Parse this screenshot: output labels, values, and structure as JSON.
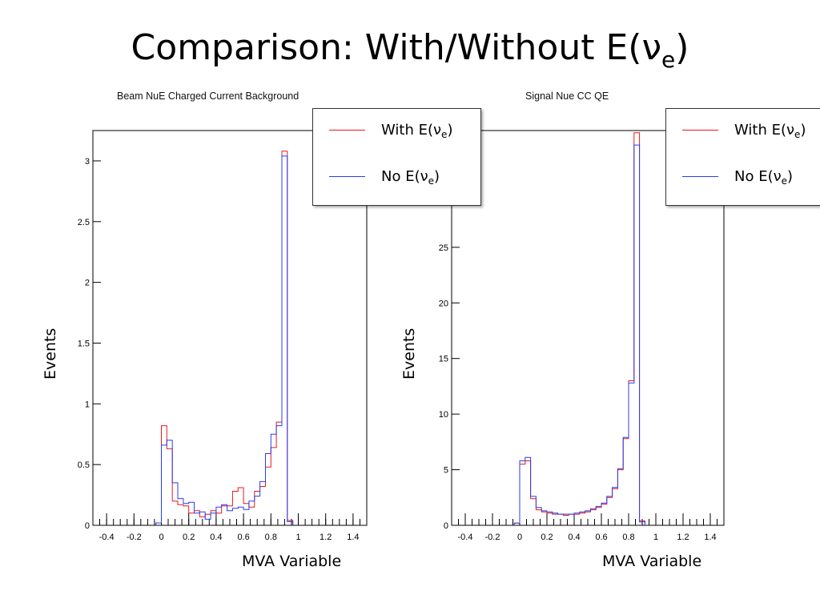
{
  "slide": {
    "title_main": "Comparison: With/Without E(ν",
    "title_sub": "e",
    "title_end": ")"
  },
  "legend": {
    "with_prefix": "With E(ν",
    "no_prefix": "No E(ν",
    "sub": "e",
    "suffix": ")"
  },
  "colors": {
    "with": "#e8191f",
    "without": "#2a3df0",
    "axis": "#000000"
  },
  "chart_data": [
    {
      "type": "histogram",
      "title": "Beam NuE Charged Current Background",
      "xlabel": "MVA Variable",
      "ylabel": "Events",
      "xlim": [
        -0.5,
        1.5
      ],
      "ylim": [
        0,
        3.25
      ],
      "xticks": [
        -0.4,
        -0.2,
        0,
        0.2,
        0.4,
        0.6,
        0.8,
        1,
        1.2,
        1.4
      ],
      "xtick_labels": [
        "-0.4",
        "-0.2",
        "0",
        "0.2",
        "0.4",
        "0.6",
        "0.8",
        "1",
        "1.2",
        "1.4"
      ],
      "yticks": [
        0,
        0.5,
        1,
        1.5,
        2,
        2.5,
        3
      ],
      "ytick_labels": [
        "0",
        "0.5",
        "1",
        "1.5",
        "2",
        "2.5",
        "3"
      ],
      "bin_width": 0.04,
      "bin_start": -0.04,
      "series": [
        {
          "name": "With E(ν_e)",
          "values": [
            0.02,
            0.82,
            0.63,
            0.2,
            0.17,
            0.16,
            0.1,
            0.12,
            0.07,
            0.09,
            0.12,
            0.1,
            0.16,
            0.16,
            0.28,
            0.31,
            0.18,
            0.15,
            0.28,
            0.32,
            0.48,
            0.64,
            0.85,
            3.08,
            0.04
          ]
        },
        {
          "name": "No E(ν_e)",
          "values": [
            0.02,
            0.66,
            0.7,
            0.35,
            0.22,
            0.18,
            0.19,
            0.1,
            0.11,
            0.05,
            0.1,
            0.15,
            0.17,
            0.12,
            0.14,
            0.15,
            0.13,
            0.2,
            0.24,
            0.36,
            0.59,
            0.75,
            0.82,
            3.04,
            0.03
          ]
        }
      ]
    },
    {
      "type": "histogram",
      "title": "Signal Nue CC QE",
      "xlabel": "MVA Variable",
      "ylabel": "Events",
      "xlim": [
        -0.5,
        1.5
      ],
      "ylim": [
        0,
        35.5
      ],
      "xticks": [
        -0.4,
        -0.2,
        0,
        0.2,
        0.4,
        0.6,
        0.8,
        1,
        1.2,
        1.4
      ],
      "xtick_labels": [
        "-0.4",
        "-0.2",
        "0",
        "0.2",
        "0.4",
        "0.6",
        "0.8",
        "1",
        "1.2",
        "1.4"
      ],
      "yticks": [
        0,
        5,
        10,
        15,
        20,
        25
      ],
      "ytick_labels": [
        "0",
        "5",
        "10",
        "15",
        "20",
        "25"
      ],
      "bin_width": 0.04,
      "bin_start": -0.04,
      "series": [
        {
          "name": "With E(ν_e)",
          "values": [
            0.2,
            5.5,
            5.8,
            2.4,
            1.4,
            1.2,
            1.1,
            1.0,
            1.0,
            0.9,
            1.0,
            1.0,
            1.1,
            1.2,
            1.4,
            1.6,
            1.9,
            2.5,
            3.3,
            5.0,
            7.8,
            13.0,
            35.3,
            0.4
          ]
        },
        {
          "name": "No E(ν_e)",
          "values": [
            0.2,
            5.8,
            6.1,
            2.6,
            1.6,
            1.3,
            1.2,
            1.1,
            1.0,
            1.0,
            1.0,
            1.1,
            1.2,
            1.3,
            1.5,
            1.7,
            2.0,
            2.6,
            3.4,
            5.1,
            7.9,
            12.8,
            34.2,
            0.3
          ]
        }
      ]
    }
  ]
}
